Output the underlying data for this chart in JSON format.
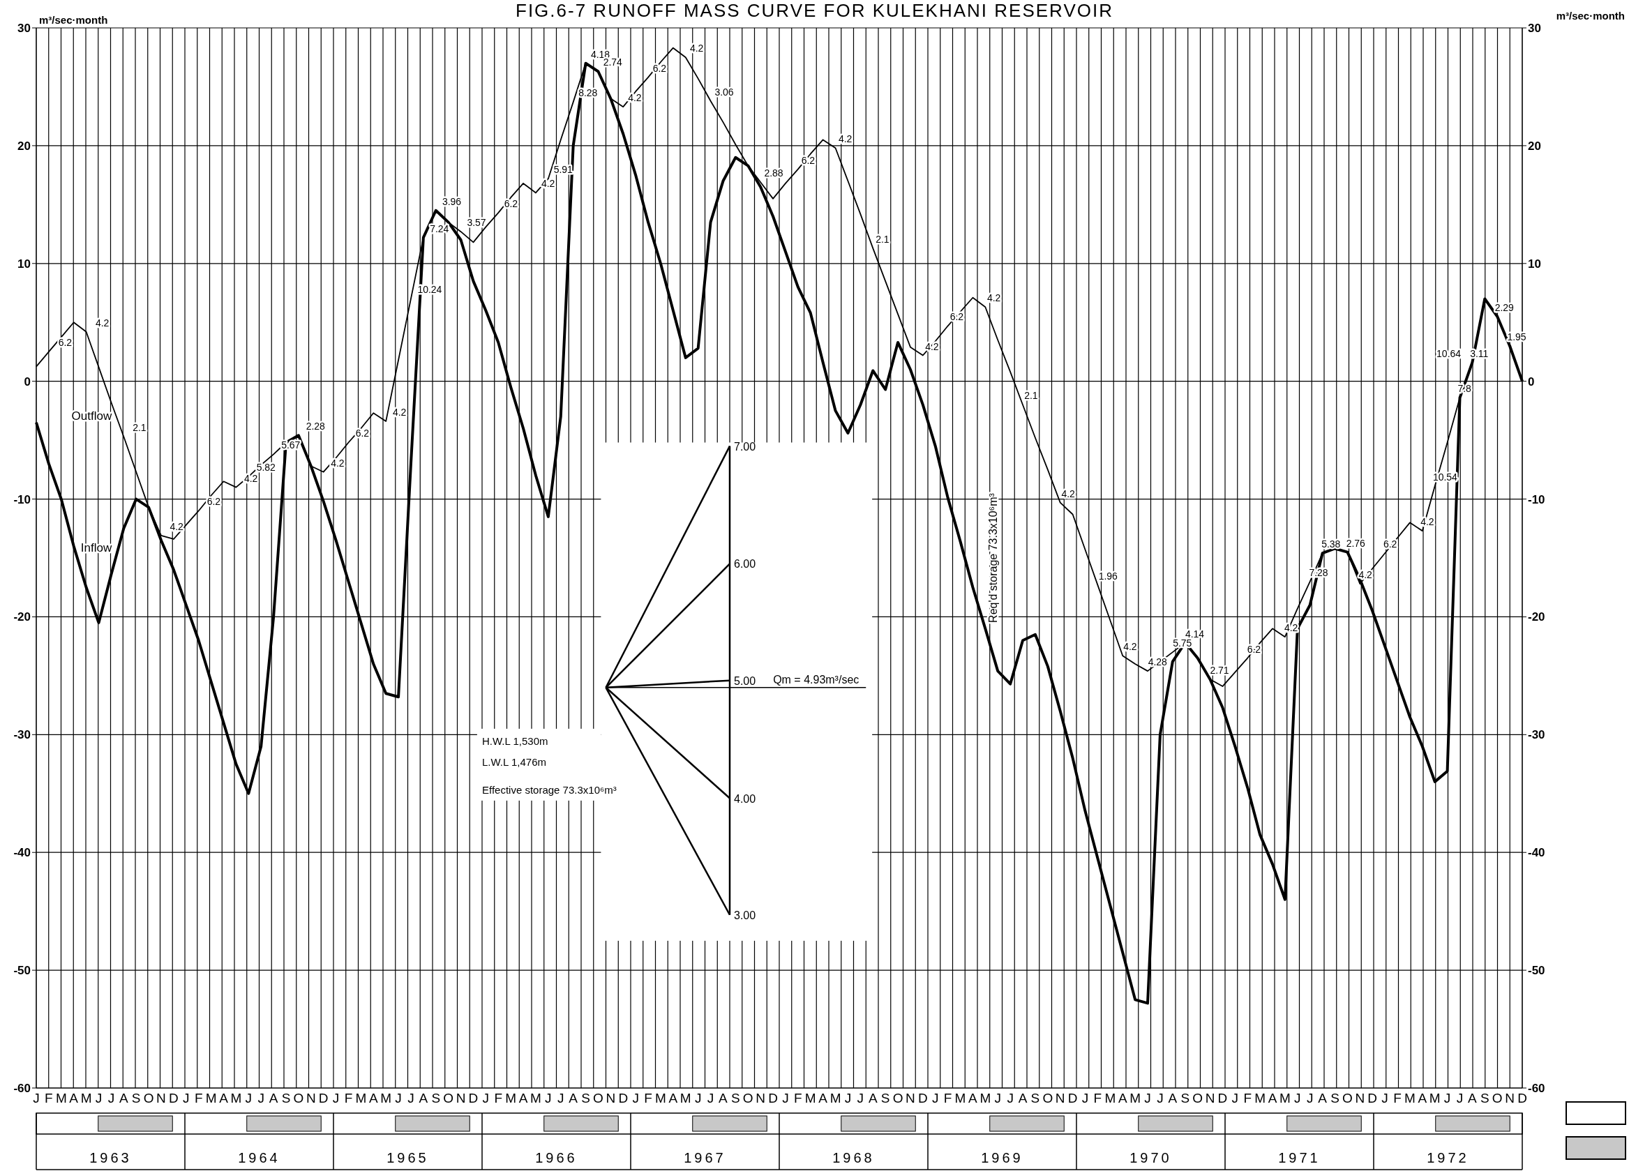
{
  "chart_data": {
    "type": "line",
    "title": "FIG.6-7 RUNOFF MASS CURVE FOR KULEKHANI RESERVOIR",
    "ylabel": "m³/sec·month",
    "y2label": "m³/sec·month",
    "categories": [
      "J",
      "F",
      "M",
      "A",
      "M",
      "J",
      "J",
      "A",
      "S",
      "O",
      "N",
      "D",
      "J",
      "F",
      "M",
      "A",
      "M",
      "J",
      "J",
      "A",
      "S",
      "O",
      "N",
      "D",
      "J",
      "F",
      "M",
      "A",
      "M",
      "J",
      "J",
      "A",
      "S",
      "O",
      "N",
      "D",
      "J",
      "F",
      "M",
      "A",
      "M",
      "J",
      "J",
      "A",
      "S",
      "O",
      "N",
      "D",
      "J",
      "F",
      "M",
      "A",
      "M",
      "J",
      "J",
      "A",
      "S",
      "O",
      "N",
      "D",
      "J",
      "F",
      "M",
      "A",
      "M",
      "J",
      "J",
      "A",
      "S",
      "O",
      "N",
      "D",
      "J",
      "F",
      "M",
      "A",
      "M",
      "J",
      "J",
      "A",
      "S",
      "O",
      "N",
      "D",
      "J",
      "F",
      "M",
      "A",
      "M",
      "J",
      "J",
      "A",
      "S",
      "O",
      "N",
      "D",
      "J",
      "F",
      "M",
      "A",
      "M",
      "J",
      "J",
      "A",
      "S",
      "O",
      "N",
      "D",
      "J",
      "F",
      "M",
      "A",
      "M",
      "J",
      "J",
      "A",
      "S",
      "O",
      "N",
      "D"
    ],
    "series": [
      {
        "name": "Inflow",
        "color": "#000000",
        "values": [
          -3.5,
          -7,
          -10,
          -14,
          -17.5,
          -20.5,
          -16.4,
          -12.5,
          -10,
          -10.7,
          -13.5,
          -16,
          -19,
          -22,
          -25.5,
          -29,
          -32.5,
          -35,
          -31,
          -20,
          -5.2,
          -4.6,
          -7.2,
          -10.2,
          -13.5,
          -17,
          -20.5,
          -24,
          -26.5,
          -26.8,
          -7,
          12.2,
          14.5,
          13.5,
          12,
          8.5,
          6,
          3.3,
          -0.5,
          -4,
          -8,
          -11.5,
          -3,
          20,
          27,
          26.3,
          24,
          21,
          17.5,
          13.5,
          10,
          6,
          2,
          2.8,
          13.5,
          17,
          19,
          18.3,
          16.5,
          14,
          11,
          8,
          5.8,
          1.6,
          -2.5,
          -4.4,
          -2,
          0.9,
          -0.7,
          3.3,
          1,
          -2,
          -5.5,
          -9.9,
          -13.6,
          -17.5,
          -21,
          -24.6,
          -25.7,
          -22,
          -21.5,
          -24.2,
          -28,
          -32,
          -36.5,
          -40.5,
          -44.5,
          -48.5,
          -52.5,
          -52.8,
          -30,
          -23.8,
          -22.2,
          -23.5,
          -25.3,
          -27.7,
          -31,
          -34.5,
          -38.5,
          -41,
          -44,
          -21,
          -19,
          -14.6,
          -14.2,
          -14.5,
          -16.8,
          -19.5,
          -22.5,
          -25.5,
          -28.5,
          -31,
          -34,
          -33.1,
          -1.4,
          1.6,
          7,
          5.5,
          3,
          0
        ]
      },
      {
        "name": "Outflow",
        "color": "#000000",
        "values": [
          1.25,
          2.5,
          3.75,
          5,
          4.2,
          1.2,
          -1.8,
          -4.7,
          -7.7,
          -10.7,
          -13.1,
          -13.4,
          -12.2,
          -11,
          -9.7,
          -8.5,
          -9,
          -8.1,
          -7.1,
          -6.2,
          -5.2,
          -4.6,
          -7.2,
          -7.7,
          -6.5,
          -5.2,
          -4,
          -2.7,
          -3.4,
          1.8,
          7,
          12.2,
          14.5,
          13.5,
          12.7,
          11.8,
          13.1,
          14.3,
          15.6,
          16.8,
          16,
          17.2,
          20.5,
          23.7,
          27,
          26.3,
          24,
          23.3,
          24.6,
          25.8,
          27.1,
          28.3,
          27.5,
          25.7,
          23.8,
          22,
          20.1,
          18.3,
          16.9,
          15.5,
          16.8,
          18,
          19.3,
          20.5,
          19.8,
          17,
          14.2,
          11.3,
          8.5,
          5.7,
          2.9,
          2.2,
          3.4,
          4.7,
          5.9,
          7.1,
          6.3,
          3.5,
          0.8,
          -2,
          -4.8,
          -7.5,
          -10.3,
          -11.3,
          -14.3,
          -17.3,
          -20.3,
          -23.3,
          -24,
          -24.6,
          -23.8,
          -23,
          -22.2,
          -23.5,
          -25.3,
          -25.9,
          -24.7,
          -23.5,
          -22.2,
          -21,
          -21.7,
          -19.3,
          -17,
          -14.6,
          -14.2,
          -14.5,
          -17.2,
          -15.9,
          -14.6,
          -13.3,
          -12,
          -12.7,
          -8.9,
          -5.2,
          -1.4,
          1.6,
          7,
          5.5,
          3,
          0
        ]
      }
    ],
    "ylim": [
      -60,
      30
    ],
    "yticks": [
      30,
      20,
      10,
      0,
      -10,
      -20,
      -30,
      -40,
      -50,
      -60
    ],
    "y2lim": [
      -60,
      30
    ],
    "y2ticks": [
      30,
      20,
      10,
      0,
      -10,
      -20,
      -30,
      -40,
      -50,
      -60
    ],
    "grid": true,
    "annotations": [
      "7.00",
      "6.00",
      "5.00",
      "4.00",
      "3.00",
      "Qm = 4.93m³/sec",
      "H.W.L 1,530m",
      "L.W.L 1,476m",
      "Effective storage 73.3x10⁶m³",
      "1963",
      "1964",
      "1965",
      "1966",
      "1967",
      "1968",
      "1969",
      "1970",
      "1971",
      "1972",
      "Req'd storage 73.3x10⁶m³",
      "6.2",
      "4.2",
      "2.1",
      "4.2",
      "6.2",
      "4.2",
      "5.82",
      "5.67",
      "2.28",
      "4.2",
      "6.2",
      "4.2",
      "10.24",
      "7.24",
      "3.96",
      "3.57",
      "6.2",
      "4.2",
      "5.91",
      "8.28",
      "4.18",
      "2.74",
      "4.2",
      "6.2",
      "4.2",
      "3.06",
      "2.88",
      "6.2",
      "4.2",
      "2.1",
      "4.2",
      "6.2",
      "4.2",
      "2.1",
      "4.2",
      "1.96",
      "4.2",
      "4.28",
      "5.75",
      "4.14",
      "2.71",
      "6.2",
      "4.2",
      "7.28",
      "5.38",
      "2.76",
      "4.2",
      "6.2",
      "4.2",
      "10.54",
      "7.8",
      "10.64",
      "3.11",
      "2.29",
      "1.95"
    ]
  }
}
